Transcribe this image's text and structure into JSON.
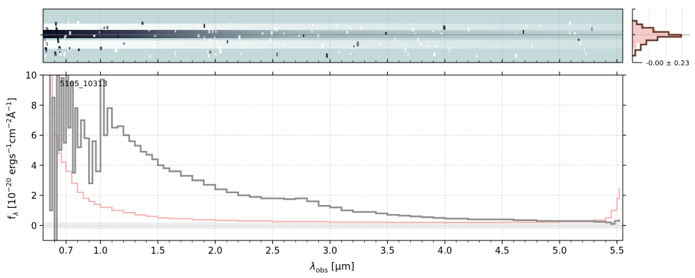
{
  "chart_data": [
    {
      "type": "heatmap",
      "panel": "2d-spectrum",
      "background_color": "#c4dada",
      "trace_color": "#1b1f3a",
      "grid": true
    },
    {
      "type": "line",
      "panel": "1d-spectrum",
      "annotation": "5105_10313",
      "xlabel_main": "λ",
      "xlabel_sub": "obs",
      "xlabel_unit": " [μm]",
      "ylabel_lines": [
        "f",
        "λ",
        " [10",
        "−20",
        " ergs",
        "−1",
        "cm",
        "−2",
        "Å",
        "−1",
        "]"
      ],
      "ylabel_text": "f_λ [10^−20 ergs^−1 cm^−2 Å^−1]",
      "xlim": [
        0.5,
        5.55
      ],
      "ylim": [
        -1,
        10
      ],
      "x_ticks": [
        0.7,
        1.0,
        1.5,
        2.0,
        2.5,
        3.0,
        3.5,
        4.0,
        4.5,
        5.0,
        5.5
      ],
      "x_tick_labels": [
        "0.7",
        "1.0",
        "1.5",
        "2.0",
        "2.5",
        "3.0",
        "3.5",
        "4.0",
        "4.5",
        "5.0",
        "5.5"
      ],
      "y_ticks": [
        0,
        2,
        4,
        6,
        8,
        10
      ],
      "y_tick_labels": [
        "0",
        "2",
        "4",
        "6",
        "8",
        "10"
      ],
      "grid": true,
      "series": [
        {
          "role": "flux",
          "color": "#8c8c8c",
          "points": [
            [
              0.55,
              10
            ],
            [
              0.56,
              1.0
            ],
            [
              0.58,
              8.5
            ],
            [
              0.6,
              -1
            ],
            [
              0.62,
              10
            ],
            [
              0.64,
              5.0
            ],
            [
              0.66,
              9.8
            ],
            [
              0.68,
              5.5
            ],
            [
              0.7,
              10
            ],
            [
              0.72,
              6.5
            ],
            [
              0.74,
              9.5
            ],
            [
              0.76,
              3.5
            ],
            [
              0.78,
              7.8
            ],
            [
              0.8,
              5.2
            ],
            [
              0.83,
              7.0
            ],
            [
              0.86,
              5.8
            ],
            [
              0.9,
              2.8
            ],
            [
              0.93,
              5.6
            ],
            [
              0.96,
              3.6
            ],
            [
              1.0,
              9.7
            ],
            [
              1.03,
              6.0
            ],
            [
              1.06,
              7.8
            ],
            [
              1.1,
              6.5
            ],
            [
              1.15,
              6.6
            ],
            [
              1.2,
              6.0
            ],
            [
              1.25,
              5.6
            ],
            [
              1.3,
              5.3
            ],
            [
              1.35,
              4.9
            ],
            [
              1.4,
              4.7
            ],
            [
              1.45,
              4.4
            ],
            [
              1.5,
              4.0
            ],
            [
              1.55,
              3.8
            ],
            [
              1.6,
              3.6
            ],
            [
              1.7,
              3.3
            ],
            [
              1.8,
              3.0
            ],
            [
              1.9,
              2.7
            ],
            [
              2.0,
              2.4
            ],
            [
              2.1,
              2.2
            ],
            [
              2.2,
              2.0
            ],
            [
              2.3,
              1.9
            ],
            [
              2.4,
              1.8
            ],
            [
              2.5,
              1.8
            ],
            [
              2.6,
              1.75
            ],
            [
              2.7,
              1.8
            ],
            [
              2.8,
              1.6
            ],
            [
              2.9,
              1.3
            ],
            [
              3.0,
              1.2
            ],
            [
              3.1,
              1.0
            ],
            [
              3.2,
              0.9
            ],
            [
              3.3,
              0.9
            ],
            [
              3.4,
              0.8
            ],
            [
              3.5,
              0.7
            ],
            [
              3.6,
              0.65
            ],
            [
              3.7,
              0.6
            ],
            [
              3.8,
              0.55
            ],
            [
              3.9,
              0.5
            ],
            [
              4.0,
              0.45
            ],
            [
              4.1,
              0.45
            ],
            [
              4.2,
              0.4
            ],
            [
              4.3,
              0.4
            ],
            [
              4.4,
              0.4
            ],
            [
              4.5,
              0.4
            ],
            [
              4.6,
              0.35
            ],
            [
              4.7,
              0.35
            ],
            [
              4.8,
              0.3
            ],
            [
              4.9,
              0.3
            ],
            [
              5.0,
              0.3
            ],
            [
              5.1,
              0.3
            ],
            [
              5.2,
              0.3
            ],
            [
              5.3,
              0.25
            ],
            [
              5.4,
              0.2
            ],
            [
              5.45,
              0.1
            ],
            [
              5.48,
              0.3
            ],
            [
              5.52,
              0.4
            ]
          ]
        },
        {
          "role": "uncertainty",
          "color": "#f4b6b6",
          "points": [
            [
              0.55,
              10
            ],
            [
              0.58,
              7.5
            ],
            [
              0.6,
              6.0
            ],
            [
              0.63,
              4.8
            ],
            [
              0.66,
              4.2
            ],
            [
              0.7,
              3.6
            ],
            [
              0.75,
              2.8
            ],
            [
              0.8,
              2.2
            ],
            [
              0.85,
              1.8
            ],
            [
              0.9,
              1.6
            ],
            [
              0.95,
              1.4
            ],
            [
              1.0,
              1.2
            ],
            [
              1.1,
              1.0
            ],
            [
              1.2,
              0.85
            ],
            [
              1.3,
              0.7
            ],
            [
              1.4,
              0.6
            ],
            [
              1.5,
              0.5
            ],
            [
              1.6,
              0.45
            ],
            [
              1.8,
              0.38
            ],
            [
              2.0,
              0.33
            ],
            [
              2.2,
              0.3
            ],
            [
              2.5,
              0.26
            ],
            [
              3.0,
              0.22
            ],
            [
              3.5,
              0.2
            ],
            [
              4.0,
              0.2
            ],
            [
              4.5,
              0.22
            ],
            [
              5.0,
              0.26
            ],
            [
              5.3,
              0.35
            ],
            [
              5.4,
              0.5
            ],
            [
              5.45,
              1.0
            ],
            [
              5.5,
              1.8
            ],
            [
              5.52,
              2.5
            ]
          ]
        }
      ]
    },
    {
      "type": "line",
      "panel": "profile-histogram",
      "annotation": "-0.00 ± 0.23",
      "line_color": "#6b3a2e",
      "fill_color": "#f4b6b6"
    }
  ]
}
